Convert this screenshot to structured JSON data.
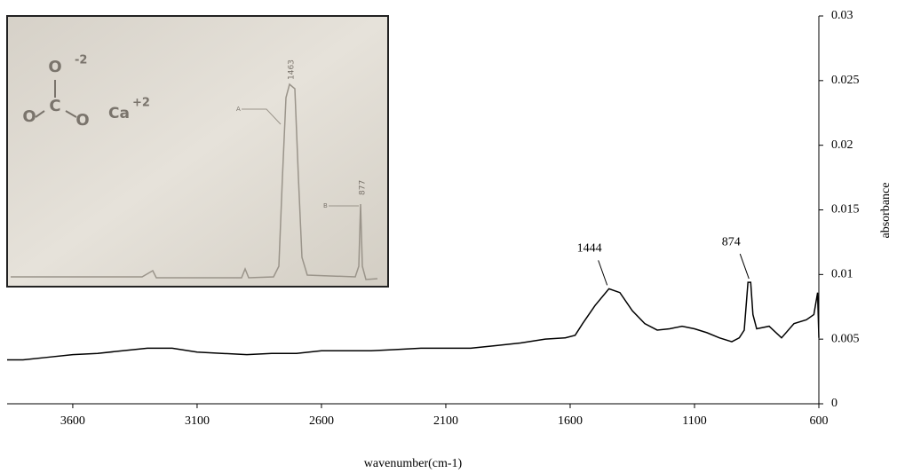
{
  "chart_data": {
    "type": "line",
    "x_label": "wavenumber(cm-1)",
    "y_label": "absorbance",
    "x": [
      3864,
      3800,
      3700,
      3600,
      3500,
      3400,
      3300,
      3200,
      3100,
      3000,
      2900,
      2800,
      2700,
      2600,
      2500,
      2400,
      2300,
      2200,
      2100,
      2000,
      1900,
      1800,
      1700,
      1620,
      1580,
      1550,
      1500,
      1444,
      1400,
      1350,
      1300,
      1250,
      1200,
      1150,
      1100,
      1050,
      1000,
      950,
      920,
      900,
      885,
      874,
      865,
      850,
      800,
      750,
      700,
      650,
      620,
      605,
      600
    ],
    "series": [
      {
        "color": "#000000",
        "values": [
          0.0034,
          0.0034,
          0.0036,
          0.0038,
          0.0039,
          0.0041,
          0.0043,
          0.0043,
          0.004,
          0.0039,
          0.0038,
          0.0039,
          0.0039,
          0.0041,
          0.0041,
          0.0041,
          0.0042,
          0.0043,
          0.0043,
          0.0043,
          0.0045,
          0.0047,
          0.005,
          0.0051,
          0.0053,
          0.0062,
          0.0076,
          0.0089,
          0.0086,
          0.0072,
          0.0062,
          0.0057,
          0.0058,
          0.006,
          0.0058,
          0.0055,
          0.0051,
          0.0048,
          0.0051,
          0.0057,
          0.0094,
          0.0094,
          0.0069,
          0.0058,
          0.006,
          0.0051,
          0.0062,
          0.0065,
          0.0069,
          0.0086,
          0.0051
        ]
      }
    ],
    "xlim": [
      3864,
      600
    ],
    "xticks": [
      3600,
      3100,
      2600,
      2100,
      1600,
      1100,
      600
    ],
    "ylim": [
      0,
      0.03
    ],
    "yticks": [
      0,
      0.005,
      0.01,
      0.015,
      0.02,
      0.025,
      0.03
    ],
    "annotations": [
      {
        "text": "1444",
        "x": 1444,
        "y": 0.0089
      },
      {
        "text": "874",
        "x": 874,
        "y": 0.0094
      }
    ]
  },
  "inset": {
    "formula": [
      "O",
      "-2",
      "C",
      "O",
      "O",
      "Ca",
      "+2"
    ],
    "peak_labels": [
      "1463",
      "877"
    ],
    "markers": [
      "A",
      "B"
    ]
  }
}
